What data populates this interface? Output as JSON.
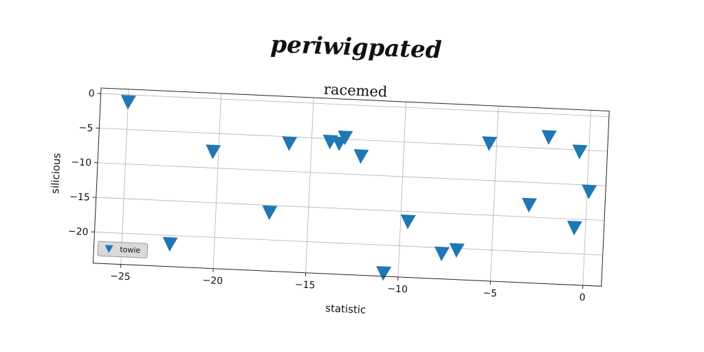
{
  "chart_data": {
    "type": "scatter",
    "suptitle": "periwigpated",
    "title": "racemed",
    "xlabel": "statistic",
    "ylabel": "silicious",
    "xlim": [
      -26.5,
      1.0
    ],
    "ylim": [
      -24.5,
      0.8
    ],
    "xticks": [
      -25,
      -20,
      -15,
      -10,
      -5,
      0
    ],
    "yticks": [
      0,
      -5,
      -10,
      -15,
      -20
    ],
    "grid": true,
    "legend_position": "lower-left",
    "marker": "triangle-down",
    "series": [
      {
        "name": "towie",
        "color": "#1f77b4",
        "points": [
          {
            "x": -25.0,
            "y": -1.0
          },
          {
            "x": -20.3,
            "y": -7.6
          },
          {
            "x": -22.4,
            "y": -21.2
          },
          {
            "x": -16.2,
            "y": -5.9
          },
          {
            "x": -17.1,
            "y": -16.0
          },
          {
            "x": -14.0,
            "y": -5.4
          },
          {
            "x": -13.5,
            "y": -5.6
          },
          {
            "x": -13.2,
            "y": -4.7
          },
          {
            "x": -12.3,
            "y": -7.3
          },
          {
            "x": -9.6,
            "y": -16.4
          },
          {
            "x": -10.8,
            "y": -24.0
          },
          {
            "x": -7.7,
            "y": -20.8
          },
          {
            "x": -6.9,
            "y": -20.2
          },
          {
            "x": -5.4,
            "y": -4.6
          },
          {
            "x": -3.1,
            "y": -13.2
          },
          {
            "x": -2.2,
            "y": -3.3
          },
          {
            "x": -0.5,
            "y": -5.2
          },
          {
            "x": -0.6,
            "y": -16.2
          },
          {
            "x": 0.1,
            "y": -10.9
          }
        ]
      }
    ]
  }
}
